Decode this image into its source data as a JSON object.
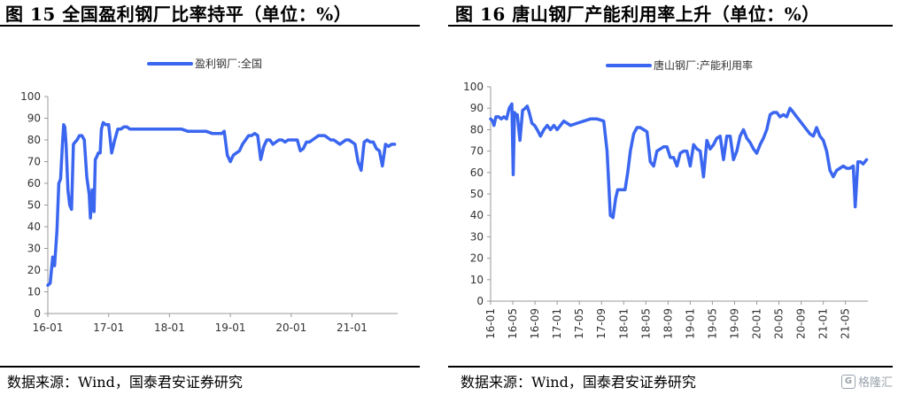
{
  "charts": [
    {
      "title": "图 15 全国盈利钢厂比率持平（单位：%）",
      "source": "数据来源：Wind，国泰君安证券研究",
      "line_color": "#3a66f0",
      "chart_data": {
        "type": "line",
        "legend_position": "top-center",
        "ylim": [
          0,
          100
        ],
        "yticks": [
          0,
          10,
          20,
          30,
          40,
          50,
          60,
          70,
          80,
          90,
          100
        ],
        "xlim": [
          2016.0,
          2021.75
        ],
        "xticks": [
          {
            "label": "16-01",
            "x": 2016.0
          },
          {
            "label": "17-01",
            "x": 2017.0
          },
          {
            "label": "18-01",
            "x": 2018.0
          },
          {
            "label": "19-01",
            "x": 2019.0
          },
          {
            "label": "20-01",
            "x": 2020.0
          },
          {
            "label": "21-01",
            "x": 2021.0
          }
        ],
        "grid": false,
        "series": [
          {
            "name": "盈利钢厂:全国",
            "x": [
              2016.0,
              2016.04,
              2016.08,
              2016.11,
              2016.15,
              2016.18,
              2016.21,
              2016.24,
              2016.26,
              2016.28,
              2016.3,
              2016.33,
              2016.36,
              2016.39,
              2016.42,
              2016.45,
              2016.48,
              2016.52,
              2016.56,
              2016.6,
              2016.64,
              2016.68,
              2016.7,
              2016.73,
              2016.76,
              2016.78,
              2016.8,
              2016.83,
              2016.86,
              2016.88,
              2016.91,
              2016.95,
              2017.0,
              2017.05,
              2017.1,
              2017.15,
              2017.2,
              2017.25,
              2017.3,
              2017.35,
              2017.4,
              2017.5,
              2017.6,
              2017.7,
              2017.8,
              2017.9,
              2018.0,
              2018.1,
              2018.2,
              2018.3,
              2018.4,
              2018.5,
              2018.6,
              2018.7,
              2018.8,
              2018.86,
              2018.9,
              2018.95,
              2019.0,
              2019.05,
              2019.1,
              2019.15,
              2019.2,
              2019.25,
              2019.3,
              2019.35,
              2019.4,
              2019.45,
              2019.5,
              2019.55,
              2019.6,
              2019.65,
              2019.7,
              2019.75,
              2019.8,
              2019.85,
              2019.9,
              2019.95,
              2020.0,
              2020.05,
              2020.1,
              2020.15,
              2020.2,
              2020.25,
              2020.3,
              2020.35,
              2020.4,
              2020.45,
              2020.5,
              2020.55,
              2020.6,
              2020.65,
              2020.7,
              2020.75,
              2020.8,
              2020.85,
              2020.9,
              2020.95,
              2021.0,
              2021.05,
              2021.1,
              2021.15,
              2021.2,
              2021.25,
              2021.3,
              2021.35,
              2021.4,
              2021.45,
              2021.5,
              2021.55,
              2021.6,
              2021.65,
              2021.7
            ],
            "values": [
              13,
              14,
              26,
              22,
              38,
              60,
              62,
              78,
              87,
              86,
              78,
              57,
              50,
              48,
              78,
              79,
              80,
              82,
              82,
              80,
              63,
              55,
              44,
              57,
              47,
              71,
              72,
              74,
              74,
              85,
              88,
              87,
              87,
              74,
              80,
              85,
              85,
              86,
              86,
              85,
              85,
              85,
              85,
              85,
              85,
              85,
              85,
              85,
              85,
              84,
              84,
              84,
              84,
              83,
              83,
              83,
              84,
              73,
              70,
              73,
              74,
              75,
              78,
              80,
              82,
              82,
              83,
              82,
              71,
              77,
              80,
              80,
              78,
              79,
              80,
              80,
              79,
              80,
              80,
              80,
              80,
              75,
              76,
              79,
              79,
              80,
              81,
              82,
              82,
              82,
              81,
              80,
              80,
              79,
              78,
              79,
              80,
              80,
              79,
              78,
              70,
              66,
              79,
              80,
              79,
              79,
              76,
              75,
              68,
              78,
              77,
              78,
              78
            ]
          }
        ]
      }
    },
    {
      "title": "图 16 唐山钢厂产能利用率上升（单位：%）",
      "source": "数据来源：Wind，国泰君安证券研究",
      "line_color": "#3a66f0",
      "chart_data": {
        "type": "line",
        "legend_position": "top-center",
        "ylim": [
          0,
          100
        ],
        "yticks": [
          0,
          10,
          20,
          30,
          40,
          50,
          60,
          70,
          80,
          90,
          100
        ],
        "xlim": [
          2016.0,
          2021.67
        ],
        "xticks": [
          {
            "label": "16-01",
            "x": 2016.0
          },
          {
            "label": "16-05",
            "x": 2016.333
          },
          {
            "label": "16-09",
            "x": 2016.667
          },
          {
            "label": "17-01",
            "x": 2017.0
          },
          {
            "label": "17-05",
            "x": 2017.333
          },
          {
            "label": "17-09",
            "x": 2017.667
          },
          {
            "label": "18-01",
            "x": 2018.0
          },
          {
            "label": "18-05",
            "x": 2018.333
          },
          {
            "label": "18-09",
            "x": 2018.667
          },
          {
            "label": "19-01",
            "x": 2019.0
          },
          {
            "label": "19-05",
            "x": 2019.333
          },
          {
            "label": "19-09",
            "x": 2019.667
          },
          {
            "label": "20-01",
            "x": 2020.0
          },
          {
            "label": "20-05",
            "x": 2020.333
          },
          {
            "label": "20-09",
            "x": 2020.667
          },
          {
            "label": "21-01",
            "x": 2021.0
          },
          {
            "label": "21-05",
            "x": 2021.333
          }
        ],
        "grid": false,
        "series": [
          {
            "name": "唐山钢厂:产能利用率",
            "x": [
              2016.0,
              2016.03,
              2016.05,
              2016.08,
              2016.12,
              2016.16,
              2016.2,
              2016.24,
              2016.28,
              2016.32,
              2016.34,
              2016.36,
              2016.38,
              2016.4,
              2016.44,
              2016.48,
              2016.52,
              2016.55,
              2016.58,
              2016.62,
              2016.66,
              2016.7,
              2016.75,
              2016.8,
              2016.85,
              2016.9,
              2016.95,
              2017.0,
              2017.1,
              2017.2,
              2017.3,
              2017.4,
              2017.5,
              2017.6,
              2017.7,
              2017.75,
              2017.8,
              2017.84,
              2017.88,
              2017.91,
              2017.94,
              2017.98,
              2018.02,
              2018.06,
              2018.1,
              2018.15,
              2018.2,
              2018.25,
              2018.3,
              2018.35,
              2018.4,
              2018.45,
              2018.5,
              2018.55,
              2018.6,
              2018.65,
              2018.7,
              2018.75,
              2018.8,
              2018.85,
              2018.9,
              2018.95,
              2019.0,
              2019.05,
              2019.1,
              2019.15,
              2019.2,
              2019.25,
              2019.3,
              2019.35,
              2019.4,
              2019.45,
              2019.5,
              2019.55,
              2019.6,
              2019.65,
              2019.7,
              2019.75,
              2019.8,
              2019.85,
              2019.9,
              2019.95,
              2020.0,
              2020.05,
              2020.1,
              2020.15,
              2020.2,
              2020.25,
              2020.3,
              2020.35,
              2020.4,
              2020.45,
              2020.5,
              2020.55,
              2020.6,
              2020.65,
              2020.7,
              2020.75,
              2020.8,
              2020.85,
              2020.9,
              2020.95,
              2021.0,
              2021.05,
              2021.1,
              2021.15,
              2021.2,
              2021.25,
              2021.3,
              2021.35,
              2021.4,
              2021.45,
              2021.48,
              2021.52,
              2021.56,
              2021.6,
              2021.65
            ],
            "values": [
              85,
              84,
              82,
              86,
              86,
              85,
              86,
              85,
              90,
              92,
              59,
              88,
              87,
              87,
              75,
              89,
              90,
              91,
              88,
              83,
              82,
              80,
              77,
              80,
              82,
              80,
              82,
              80,
              84,
              82,
              83,
              84,
              85,
              85,
              84,
              70,
              40,
              39,
              48,
              52,
              52,
              52,
              52,
              60,
              70,
              78,
              81,
              81,
              80,
              79,
              65,
              63,
              70,
              71,
              72,
              72,
              67,
              67,
              63,
              69,
              70,
              70,
              63,
              73,
              71,
              70,
              58,
              75,
              71,
              73,
              76,
              77,
              66,
              77,
              77,
              66,
              70,
              77,
              80,
              76,
              74,
              71,
              69,
              73,
              76,
              80,
              87,
              88,
              88,
              86,
              87,
              86,
              90,
              88,
              86,
              84,
              82,
              80,
              78,
              77,
              81,
              77,
              75,
              70,
              61,
              58,
              61,
              62,
              63,
              62,
              62,
              63,
              44,
              65,
              65,
              64,
              66
            ]
          }
        ]
      }
    }
  ],
  "watermark": {
    "icon": "G",
    "text": "格隆汇"
  }
}
